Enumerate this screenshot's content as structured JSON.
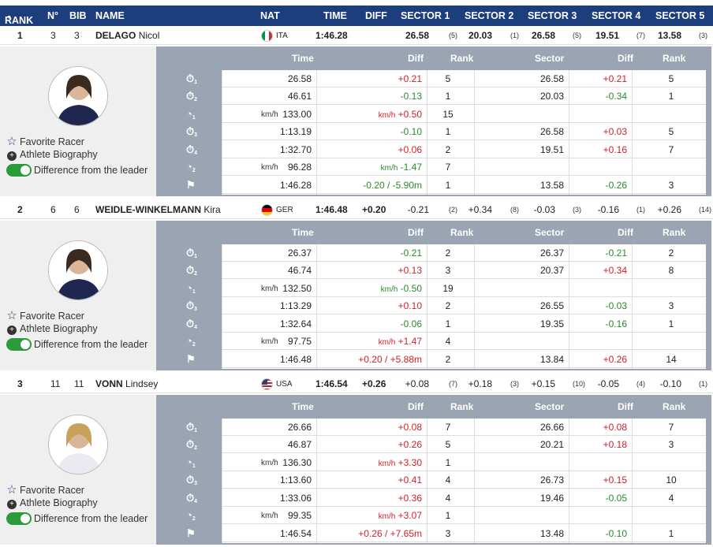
{
  "header": {
    "rank": "RANK",
    "no": "N°",
    "bib": "BIB",
    "name": "NAME",
    "nat": "NAT",
    "time": "TIME",
    "diff": "DIFF",
    "s1": "SECTOR 1",
    "s2": "SECTOR 2",
    "s3": "SECTOR 3",
    "s4": "SECTOR 4",
    "s5": "SECTOR 5"
  },
  "detail_headers": {
    "time": "Time",
    "diff": "Diff",
    "rank": "Rank",
    "sector": "Sector",
    "diff2": "Diff",
    "rank2": "Rank"
  },
  "links": {
    "favorite": "Favorite Racer",
    "bio": "Athlete Biography",
    "diff_leader": "Difference from the leader"
  },
  "colors": {
    "header": "#1d3e7c",
    "detail_bg": "#9aa4b2",
    "red": "#d0202a",
    "green": "#2a8a2a"
  },
  "athletes": [
    {
      "rank": "1",
      "no": "3",
      "bib": "3",
      "last": "DELAGO",
      "first": "Nicol",
      "nat": "ITA",
      "time": "1:46.28",
      "diff": "",
      "sectors": [
        {
          "v": "26.58",
          "r": "(5)"
        },
        {
          "v": "20.03",
          "r": "(1)"
        },
        {
          "v": "26.58",
          "r": "(5)"
        },
        {
          "v": "19.51",
          "r": "(7)"
        },
        {
          "v": "13.58",
          "r": "(3)"
        }
      ],
      "rows": [
        {
          "icon": "timer",
          "sub": "1",
          "unit": "",
          "time": "26.58",
          "diff": "+0.21",
          "dunit": "",
          "rank": "5",
          "sector": "26.58",
          "sdiff": "+0.21",
          "srank": "5"
        },
        {
          "icon": "timer",
          "sub": "2",
          "unit": "",
          "time": "46.61",
          "diff": "-0.13",
          "dunit": "",
          "rank": "1",
          "sector": "20.03",
          "sdiff": "-0.34",
          "srank": "1"
        },
        {
          "icon": "speed",
          "sub": "1",
          "unit": "km/h",
          "time": "133.00",
          "diff": "+0.50",
          "dunit": "km/h",
          "rank": "15",
          "sector": "",
          "sdiff": "",
          "srank": ""
        },
        {
          "icon": "timer",
          "sub": "3",
          "unit": "",
          "time": "1:13.19",
          "diff": "-0.10",
          "dunit": "",
          "rank": "1",
          "sector": "26.58",
          "sdiff": "+0.03",
          "srank": "5"
        },
        {
          "icon": "timer",
          "sub": "4",
          "unit": "",
          "time": "1:32.70",
          "diff": "+0.06",
          "dunit": "",
          "rank": "2",
          "sector": "19.51",
          "sdiff": "+0.16",
          "srank": "7"
        },
        {
          "icon": "speed",
          "sub": "2",
          "unit": "km/h",
          "time": "96.28",
          "diff": "-1.47",
          "dunit": "km/h",
          "rank": "7",
          "sector": "",
          "sdiff": "",
          "srank": ""
        },
        {
          "icon": "flag",
          "sub": "",
          "unit": "",
          "time": "1:46.28",
          "diff": "-0.20 / -5.90m",
          "dunit": "",
          "rank": "1",
          "sector": "13.58",
          "sdiff": "-0.26",
          "srank": "3"
        }
      ]
    },
    {
      "rank": "2",
      "no": "6",
      "bib": "6",
      "last": "WEIDLE-WINKELMANN",
      "first": "Kira",
      "nat": "GER",
      "time": "1:46.48",
      "diff": "+0.20",
      "sectors": [
        {
          "v": "-0.21",
          "r": "(2)"
        },
        {
          "v": "+0.34",
          "r": "(8)"
        },
        {
          "v": "-0.03",
          "r": "(3)"
        },
        {
          "v": "-0.16",
          "r": "(1)"
        },
        {
          "v": "+0.26",
          "r": "(14)"
        }
      ],
      "rows": [
        {
          "icon": "timer",
          "sub": "1",
          "unit": "",
          "time": "26.37",
          "diff": "-0.21",
          "dunit": "",
          "rank": "2",
          "sector": "26.37",
          "sdiff": "-0.21",
          "srank": "2"
        },
        {
          "icon": "timer",
          "sub": "2",
          "unit": "",
          "time": "46.74",
          "diff": "+0.13",
          "dunit": "",
          "rank": "3",
          "sector": "20.37",
          "sdiff": "+0.34",
          "srank": "8"
        },
        {
          "icon": "speed",
          "sub": "1",
          "unit": "km/h",
          "time": "132.50",
          "diff": "-0.50",
          "dunit": "km/h",
          "rank": "19",
          "sector": "",
          "sdiff": "",
          "srank": ""
        },
        {
          "icon": "timer",
          "sub": "3",
          "unit": "",
          "time": "1:13.29",
          "diff": "+0.10",
          "dunit": "",
          "rank": "2",
          "sector": "26.55",
          "sdiff": "-0.03",
          "srank": "3"
        },
        {
          "icon": "timer",
          "sub": "4",
          "unit": "",
          "time": "1:32.64",
          "diff": "-0.06",
          "dunit": "",
          "rank": "1",
          "sector": "19.35",
          "sdiff": "-0.16",
          "srank": "1"
        },
        {
          "icon": "speed",
          "sub": "2",
          "unit": "km/h",
          "time": "97.75",
          "diff": "+1.47",
          "dunit": "km/h",
          "rank": "4",
          "sector": "",
          "sdiff": "",
          "srank": ""
        },
        {
          "icon": "flag",
          "sub": "",
          "unit": "",
          "time": "1:46.48",
          "diff": "+0.20 / +5.88m",
          "dunit": "",
          "rank": "2",
          "sector": "13.84",
          "sdiff": "+0.26",
          "srank": "14"
        }
      ]
    },
    {
      "rank": "3",
      "no": "11",
      "bib": "11",
      "last": "VONN",
      "first": "Lindsey",
      "nat": "USA",
      "time": "1:46.54",
      "diff": "+0.26",
      "sectors": [
        {
          "v": "+0.08",
          "r": "(7)"
        },
        {
          "v": "+0.18",
          "r": "(3)"
        },
        {
          "v": "+0.15",
          "r": "(10)"
        },
        {
          "v": "-0.05",
          "r": "(4)"
        },
        {
          "v": "-0.10",
          "r": "(1)"
        }
      ],
      "rows": [
        {
          "icon": "timer",
          "sub": "1",
          "unit": "",
          "time": "26.66",
          "diff": "+0.08",
          "dunit": "",
          "rank": "7",
          "sector": "26.66",
          "sdiff": "+0.08",
          "srank": "7"
        },
        {
          "icon": "timer",
          "sub": "2",
          "unit": "",
          "time": "46.87",
          "diff": "+0.26",
          "dunit": "",
          "rank": "5",
          "sector": "20.21",
          "sdiff": "+0.18",
          "srank": "3"
        },
        {
          "icon": "speed",
          "sub": "1",
          "unit": "km/h",
          "time": "136.30",
          "diff": "+3.30",
          "dunit": "km/h",
          "rank": "1",
          "sector": "",
          "sdiff": "",
          "srank": ""
        },
        {
          "icon": "timer",
          "sub": "3",
          "unit": "",
          "time": "1:13.60",
          "diff": "+0.41",
          "dunit": "",
          "rank": "4",
          "sector": "26.73",
          "sdiff": "+0.15",
          "srank": "10"
        },
        {
          "icon": "timer",
          "sub": "4",
          "unit": "",
          "time": "1:33.06",
          "diff": "+0.36",
          "dunit": "",
          "rank": "4",
          "sector": "19.46",
          "sdiff": "-0.05",
          "srank": "4"
        },
        {
          "icon": "speed",
          "sub": "2",
          "unit": "km/h",
          "time": "99.35",
          "diff": "+3.07",
          "dunit": "km/h",
          "rank": "1",
          "sector": "",
          "sdiff": "",
          "srank": ""
        },
        {
          "icon": "flag",
          "sub": "",
          "unit": "",
          "time": "1:46.54",
          "diff": "+0.26 / +7.65m",
          "dunit": "",
          "rank": "3",
          "sector": "13.48",
          "sdiff": "-0.10",
          "srank": "1"
        }
      ]
    }
  ]
}
